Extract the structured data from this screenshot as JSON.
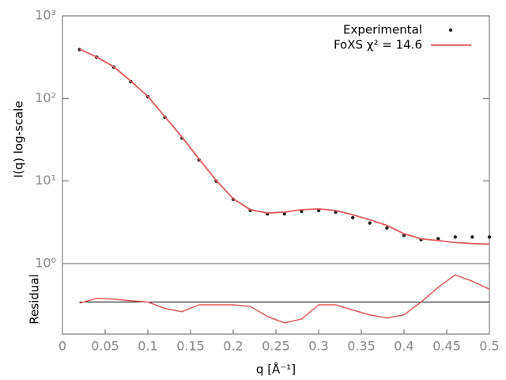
{
  "chart_data": [
    {
      "type": "line",
      "ylabel": "I(q) log-scale",
      "log_y": true,
      "ylim": [
        1,
        1000
      ],
      "yticks": [
        {
          "value": 1,
          "label": "10⁰"
        },
        {
          "value": 10,
          "label": "10¹"
        },
        {
          "value": 100,
          "label": "10²"
        },
        {
          "value": 1000,
          "label": "10³"
        }
      ],
      "xlim": [
        0,
        0.5
      ],
      "legend": "upper right",
      "x": [
        0.02,
        0.04,
        0.06,
        0.08,
        0.1,
        0.12,
        0.14,
        0.16,
        0.18,
        0.2,
        0.22,
        0.24,
        0.26,
        0.28,
        0.3,
        0.32,
        0.34,
        0.36,
        0.38,
        0.4,
        0.42,
        0.44,
        0.46,
        0.48,
        0.5
      ],
      "series": [
        {
          "name": "Experimental",
          "color": "#222222",
          "mode": "points",
          "values": [
            390,
            316,
            240,
            160,
            105,
            59,
            33,
            18,
            10,
            6,
            4.4,
            4.0,
            4.0,
            4.3,
            4.4,
            4.2,
            3.6,
            3.1,
            2.7,
            2.2,
            1.95,
            2.0,
            2.1,
            2.1,
            2.1
          ]
        },
        {
          "name": "FoXS χ² = 14.6",
          "color": "#e05a5a",
          "mode": "line",
          "values": [
            395,
            318,
            242,
            162,
            106,
            60,
            34,
            18.5,
            10.2,
            6.1,
            4.5,
            4.1,
            4.2,
            4.5,
            4.6,
            4.4,
            3.9,
            3.4,
            2.9,
            2.3,
            2.0,
            1.9,
            1.8,
            1.75,
            1.72
          ]
        }
      ]
    },
    {
      "type": "line",
      "ylabel": "Residual",
      "xlabel": "q [Å⁻¹]",
      "ylim": [
        -2,
        2.4
      ],
      "xlim": [
        0,
        0.5
      ],
      "xticks": [
        0,
        0.05,
        0.1,
        0.15,
        0.2,
        0.25,
        0.3,
        0.35,
        0.4,
        0.45,
        0.5
      ],
      "reference_line": 0,
      "x": [
        0.02,
        0.04,
        0.06,
        0.08,
        0.1,
        0.12,
        0.14,
        0.16,
        0.18,
        0.2,
        0.22,
        0.24,
        0.26,
        0.28,
        0.3,
        0.32,
        0.34,
        0.36,
        0.38,
        0.4,
        0.42,
        0.44,
        0.46,
        0.48,
        0.5
      ],
      "color": "#e05a5a",
      "values": [
        -0.07,
        0.23,
        0.18,
        0.08,
        0,
        -0.4,
        -0.6,
        -0.17,
        -0.17,
        -0.17,
        -0.27,
        -0.9,
        -1.3,
        -1.06,
        -0.17,
        -0.17,
        -0.5,
        -0.8,
        -1.0,
        -0.8,
        0,
        0.92,
        1.7,
        1.3,
        0.8
      ]
    }
  ]
}
